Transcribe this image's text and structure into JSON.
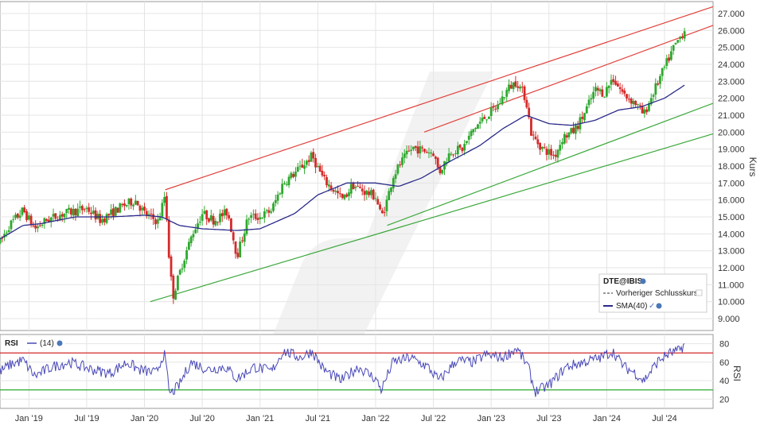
{
  "chart_data": [
    {
      "type": "candlestick",
      "symbol": "DTE@IBIS",
      "ylabel": "Kurs",
      "ylim": [
        8.3,
        27.7
      ],
      "yticks": [
        "9.000",
        "10.000",
        "11.000",
        "12.000",
        "13.000",
        "14.000",
        "15.000",
        "16.000",
        "17.000",
        "18.000",
        "19.000",
        "20.000",
        "21.000",
        "22.000",
        "23.000",
        "24.000",
        "25.000",
        "26.000",
        "27.000"
      ],
      "x_tick_labels": [
        "Jan '19",
        "Jul '19",
        "Jan '20",
        "Jul '20",
        "Jan '21",
        "Jul '21",
        "Jan '22",
        "Jul '22",
        "Jan '23",
        "Jul '23",
        "Jan '24",
        "Jul '24"
      ],
      "x_range_years": [
        2018.75,
        2024.92
      ],
      "grid": true,
      "legend": {
        "placement": "bottom-right",
        "title": "DTE@IBIS",
        "entries": [
          {
            "label": "Vorheriger Schlusskurs",
            "style": "dashed",
            "color": "#333333"
          },
          {
            "label": "SMA(40)",
            "style": "solid",
            "color": "#2a2a8a"
          }
        ]
      },
      "price_anchors": [
        [
          2018.75,
          13.5
        ],
        [
          2018.83,
          14.5
        ],
        [
          2018.95,
          15.4
        ],
        [
          2019.05,
          14.3
        ],
        [
          2019.15,
          14.8
        ],
        [
          2019.3,
          15.2
        ],
        [
          2019.5,
          15.5
        ],
        [
          2019.62,
          14.8
        ],
        [
          2019.8,
          15.6
        ],
        [
          2019.92,
          16.0
        ],
        [
          2020.0,
          15.2
        ],
        [
          2020.12,
          14.7
        ],
        [
          2020.18,
          16.4
        ],
        [
          2020.22,
          11.8
        ],
        [
          2020.25,
          10.4
        ],
        [
          2020.33,
          12.3
        ],
        [
          2020.42,
          14.1
        ],
        [
          2020.5,
          15.2
        ],
        [
          2020.6,
          14.8
        ],
        [
          2020.72,
          15.3
        ],
        [
          2020.8,
          12.7
        ],
        [
          2020.9,
          15.0
        ],
        [
          2021.0,
          15.0
        ],
        [
          2021.1,
          15.4
        ],
        [
          2021.2,
          17.0
        ],
        [
          2021.32,
          17.7
        ],
        [
          2021.45,
          18.6
        ],
        [
          2021.55,
          17.2
        ],
        [
          2021.65,
          16.5
        ],
        [
          2021.72,
          16.0
        ],
        [
          2021.8,
          16.9
        ],
        [
          2021.9,
          16.5
        ],
        [
          2022.0,
          16.2
        ],
        [
          2022.05,
          15.0
        ],
        [
          2022.1,
          16.0
        ],
        [
          2022.15,
          17.4
        ],
        [
          2022.22,
          18.2
        ],
        [
          2022.32,
          19.1
        ],
        [
          2022.42,
          18.9
        ],
        [
          2022.5,
          18.8
        ],
        [
          2022.55,
          17.6
        ],
        [
          2022.65,
          18.9
        ],
        [
          2022.75,
          19.0
        ],
        [
          2022.85,
          20.2
        ],
        [
          2022.95,
          20.9
        ],
        [
          2023.05,
          21.5
        ],
        [
          2023.15,
          22.6
        ],
        [
          2023.22,
          23.0
        ],
        [
          2023.3,
          22.0
        ],
        [
          2023.35,
          19.8
        ],
        [
          2023.45,
          19.0
        ],
        [
          2023.55,
          18.6
        ],
        [
          2023.62,
          19.7
        ],
        [
          2023.72,
          20.1
        ],
        [
          2023.8,
          21.0
        ],
        [
          2023.9,
          22.5
        ],
        [
          2023.98,
          22.3
        ],
        [
          2024.05,
          23.2
        ],
        [
          2024.15,
          22.2
        ],
        [
          2024.25,
          21.7
        ],
        [
          2024.32,
          21.0
        ],
        [
          2024.4,
          22.3
        ],
        [
          2024.5,
          23.8
        ],
        [
          2024.58,
          25.0
        ],
        [
          2024.68,
          26.1
        ]
      ],
      "sma40_anchors": [
        [
          2018.75,
          13.7
        ],
        [
          2018.95,
          14.5
        ],
        [
          2019.1,
          14.6
        ],
        [
          2019.4,
          15.0
        ],
        [
          2019.7,
          15.0
        ],
        [
          2020.0,
          15.1
        ],
        [
          2020.15,
          15.0
        ],
        [
          2020.3,
          14.5
        ],
        [
          2020.5,
          14.3
        ],
        [
          2020.8,
          14.2
        ],
        [
          2021.0,
          14.3
        ],
        [
          2021.1,
          14.6
        ],
        [
          2021.3,
          15.2
        ],
        [
          2021.5,
          16.3
        ],
        [
          2021.75,
          17.0
        ],
        [
          2022.0,
          17.0
        ],
        [
          2022.2,
          16.8
        ],
        [
          2022.4,
          17.3
        ],
        [
          2022.65,
          18.3
        ],
        [
          2022.9,
          19.2
        ],
        [
          2023.1,
          20.2
        ],
        [
          2023.3,
          21.0
        ],
        [
          2023.5,
          20.5
        ],
        [
          2023.7,
          20.4
        ],
        [
          2023.9,
          20.7
        ],
        [
          2024.1,
          21.3
        ],
        [
          2024.3,
          21.5
        ],
        [
          2024.5,
          22.0
        ],
        [
          2024.68,
          22.8
        ]
      ],
      "trendlines": [
        {
          "color": "#e0413a",
          "from": [
            2020.18,
            16.6
          ],
          "to": [
            2024.92,
            27.4
          ]
        },
        {
          "color": "#e0413a",
          "from": [
            2022.42,
            20.0
          ],
          "to": [
            2024.92,
            26.3
          ]
        },
        {
          "color": "#3ca83c",
          "from": [
            2020.05,
            10.0
          ],
          "to": [
            2024.92,
            19.9
          ]
        },
        {
          "color": "#3ca83c",
          "from": [
            2022.1,
            14.5
          ],
          "to": [
            2024.92,
            21.7
          ]
        }
      ]
    },
    {
      "type": "line",
      "indicator": "RSI",
      "period_label": "(14)",
      "ylabel": "RSI",
      "ylim": [
        10,
        90
      ],
      "yticks": [
        "20",
        "40",
        "60",
        "80"
      ],
      "reference_lines": [
        70,
        30
      ],
      "rsi_anchors": [
        [
          2018.75,
          50
        ],
        [
          2018.85,
          58
        ],
        [
          2018.95,
          62
        ],
        [
          2019.05,
          45
        ],
        [
          2019.2,
          55
        ],
        [
          2019.35,
          60
        ],
        [
          2019.55,
          52
        ],
        [
          2019.7,
          48
        ],
        [
          2019.85,
          60
        ],
        [
          2019.95,
          52
        ],
        [
          2020.1,
          48
        ],
        [
          2020.17,
          70
        ],
        [
          2020.22,
          25
        ],
        [
          2020.3,
          35
        ],
        [
          2020.4,
          60
        ],
        [
          2020.55,
          52
        ],
        [
          2020.7,
          55
        ],
        [
          2020.8,
          42
        ],
        [
          2020.95,
          55
        ],
        [
          2021.1,
          50
        ],
        [
          2021.2,
          72
        ],
        [
          2021.35,
          65
        ],
        [
          2021.45,
          72
        ],
        [
          2021.55,
          52
        ],
        [
          2021.7,
          40
        ],
        [
          2021.85,
          55
        ],
        [
          2022.0,
          42
        ],
        [
          2022.05,
          30
        ],
        [
          2022.15,
          60
        ],
        [
          2022.3,
          65
        ],
        [
          2022.45,
          55
        ],
        [
          2022.55,
          40
        ],
        [
          2022.7,
          62
        ],
        [
          2022.85,
          60
        ],
        [
          2022.95,
          68
        ],
        [
          2023.1,
          65
        ],
        [
          2023.22,
          75
        ],
        [
          2023.32,
          55
        ],
        [
          2023.38,
          28
        ],
        [
          2023.5,
          35
        ],
        [
          2023.65,
          55
        ],
        [
          2023.8,
          60
        ],
        [
          2023.95,
          65
        ],
        [
          2024.05,
          72
        ],
        [
          2024.15,
          55
        ],
        [
          2024.25,
          48
        ],
        [
          2024.32,
          40
        ],
        [
          2024.45,
          62
        ],
        [
          2024.55,
          70
        ],
        [
          2024.62,
          72
        ],
        [
          2024.68,
          80
        ]
      ]
    }
  ]
}
